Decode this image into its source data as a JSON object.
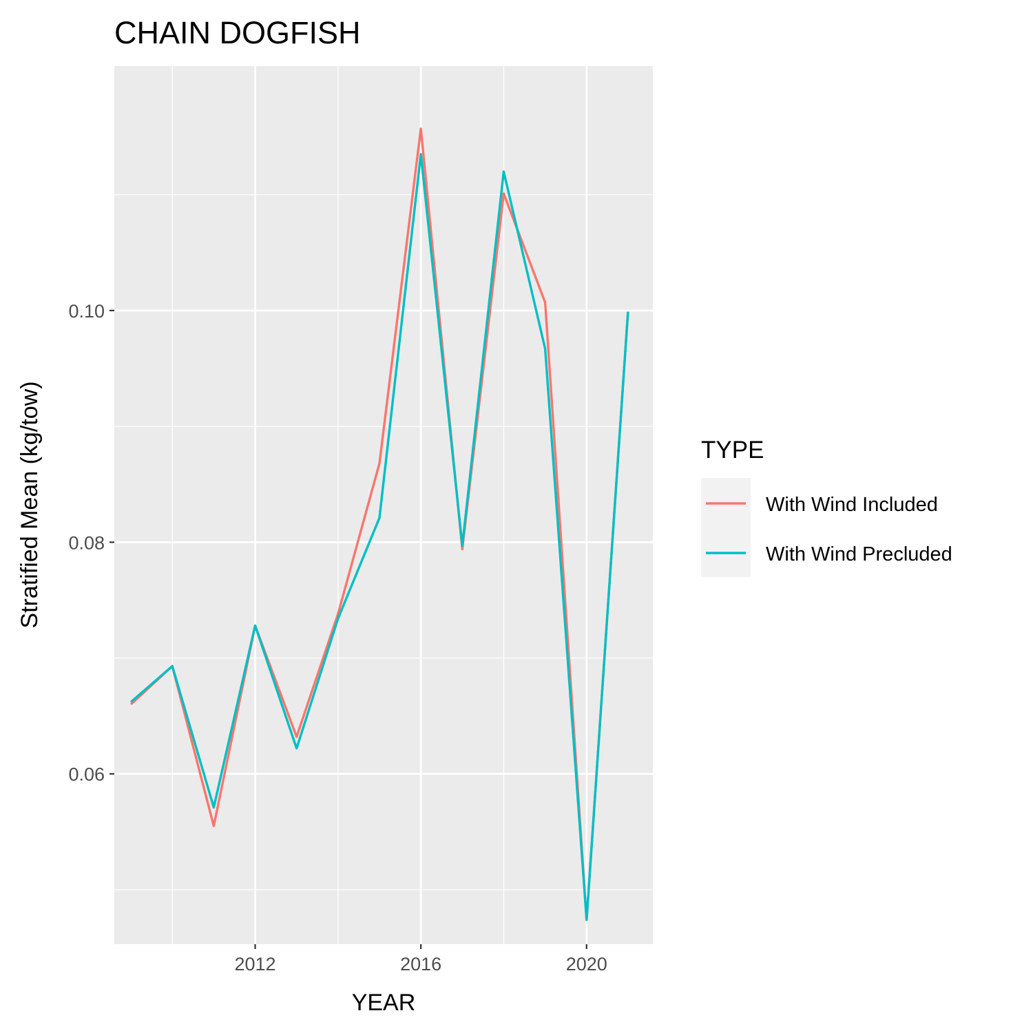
{
  "chart_data": {
    "type": "line",
    "title": "CHAIN DOGFISH",
    "xlabel": "YEAR",
    "ylabel": "Stratified Mean (kg/tow)",
    "xlim": [
      2008.6,
      2021.6
    ],
    "ylim": [
      0.0453,
      0.1211
    ],
    "x_ticks": [
      2012,
      2016,
      2020
    ],
    "x_tick_labels": [
      "2012",
      "2016",
      "2020"
    ],
    "x_minor_ticks": [
      2010,
      2014,
      2018
    ],
    "y_ticks": [
      0.06,
      0.08,
      0.1
    ],
    "y_tick_labels": [
      "0.06",
      "0.08",
      "0.10"
    ],
    "y_minor_ticks": [
      0.05,
      0.07,
      0.09,
      0.11
    ],
    "grid": true,
    "legend_title": "TYPE",
    "legend_position": "right",
    "x": [
      2009,
      2010,
      2011,
      2012,
      2013,
      2014,
      2015,
      2016,
      2017,
      2018,
      2019,
      2020,
      2021
    ],
    "series": [
      {
        "name": "With Wind Included",
        "color": "#F8766D",
        "values": [
          0.066,
          0.0693,
          0.0555,
          0.0728,
          0.0632,
          0.0738,
          0.0868,
          0.1157,
          0.0794,
          0.1101,
          0.1007,
          0.0474,
          0.0999
        ]
      },
      {
        "name": "With Wind Precluded",
        "color": "#00BFC4",
        "values": [
          0.0662,
          0.0693,
          0.0571,
          0.0728,
          0.0622,
          0.0734,
          0.0821,
          0.1135,
          0.0797,
          0.112,
          0.0967,
          0.0474,
          0.0999
        ]
      }
    ]
  }
}
